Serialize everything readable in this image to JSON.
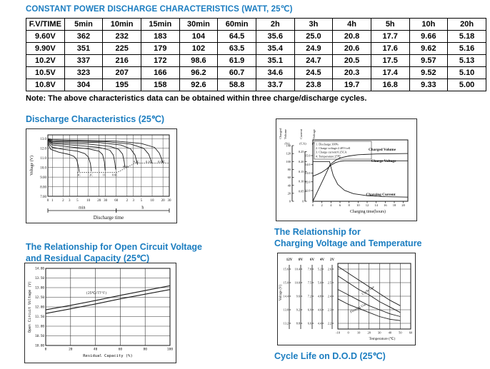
{
  "page_title": "CONSTANT POWER DISCHARGE CHARACTERISTICS (WATT, 25℃)",
  "accent_color": "#1b7dc0",
  "table": {
    "header": [
      "F.V/TIME",
      "5min",
      "10min",
      "15min",
      "30min",
      "60min",
      "2h",
      "3h",
      "4h",
      "5h",
      "10h",
      "20h"
    ],
    "rows": [
      [
        "9.60V",
        "362",
        "232",
        "183",
        "104",
        "64.5",
        "35.6",
        "25.0",
        "20.8",
        "17.7",
        "9.66",
        "5.18"
      ],
      [
        "9.90V",
        "351",
        "225",
        "179",
        "102",
        "63.5",
        "35.4",
        "24.9",
        "20.6",
        "17.6",
        "9.62",
        "5.16"
      ],
      [
        "10.2V",
        "337",
        "216",
        "172",
        "98.6",
        "61.9",
        "35.1",
        "24.7",
        "20.5",
        "17.5",
        "9.57",
        "5.13"
      ],
      [
        "10.5V",
        "323",
        "207",
        "166",
        "96.2",
        "60.7",
        "34.6",
        "24.5",
        "20.3",
        "17.4",
        "9.52",
        "5.10"
      ],
      [
        "10.8V",
        "304",
        "195",
        "158",
        "92.6",
        "58.8",
        "33.7",
        "23.8",
        "19.7",
        "16.8",
        "9.33",
        "5.00"
      ]
    ]
  },
  "note": "Note: The above characteristics data can be obtained within three charge/discharge cycles.",
  "sections": {
    "discharge_title": "Discharge Characteristics (25℃)",
    "charging_title_line1": "The Relationship for",
    "charging_title_line2": "Charging Voltage and Temperature",
    "ocv_title_line1": "The Relationship for Open Circuit Voltage",
    "ocv_title_line2": "and Residual Capacity (25℃)",
    "cycle_life_title": "Cycle Life on D.O.D (25℃)"
  },
  "chart_data": [
    {
      "id": "discharge",
      "type": "line",
      "title": "Discharge Characteristics (25℃)",
      "ylabel": "Voltage (V)",
      "xlabel": "Discharge time",
      "x_scale": "log",
      "xlim_minutes": [
        0.75,
        1800
      ],
      "ylim": [
        7.0,
        13.4
      ],
      "grid": true,
      "y_ticks": [
        {
          "label": "13.0",
          "v": 13.0
        },
        {
          "label": "12.0",
          "v": 12.0
        },
        {
          "label": "11.0",
          "v": 11.0
        },
        {
          "label": "10.0",
          "v": 10.0
        },
        {
          "label": "9.00",
          "v": 9.0
        },
        {
          "label": "8.00",
          "v": 8.0
        },
        {
          "label": "7.00",
          "v": 7.0
        }
      ],
      "x_ticks": [
        {
          "label": "0",
          "t": 0.75
        },
        {
          "label": "1",
          "t": 1
        },
        {
          "label": "2",
          "t": 2
        },
        {
          "label": "3",
          "t": 3
        },
        {
          "label": "5",
          "t": 5
        },
        {
          "label": "10",
          "t": 10
        },
        {
          "label": "20",
          "t": 20
        },
        {
          "label": "30",
          "t": 30
        },
        {
          "label": "60",
          "t": 60
        },
        {
          "label": "2",
          "t": 120
        },
        {
          "label": "3",
          "t": 180
        },
        {
          "label": "5",
          "t": 300
        },
        {
          "label": "10",
          "t": 600
        },
        {
          "label": "20",
          "t": 1200
        },
        {
          "label": "30",
          "t": 1800
        }
      ],
      "unit_segments": [
        {
          "label": "min",
          "from": 0.75,
          "to": 60
        },
        {
          "label": "h",
          "from": 60,
          "to": 1800
        }
      ],
      "series": [
        {
          "name": "3C",
          "points": [
            [
              0.75,
              12.5
            ],
            [
              0.9,
              11.9
            ],
            [
              1.5,
              11.6
            ],
            [
              3,
              11.35
            ],
            [
              4,
              11.15
            ],
            [
              4.8,
              10.8
            ],
            [
              5.3,
              10.1
            ],
            [
              5.6,
              9.55
            ]
          ]
        },
        {
          "name": "2C",
          "points": [
            [
              0.75,
              12.6
            ],
            [
              1,
              12.1
            ],
            [
              2,
              11.9
            ],
            [
              5,
              11.7
            ],
            [
              8,
              11.45
            ],
            [
              10,
              11.1
            ],
            [
              11.5,
              10.4
            ],
            [
              12.2,
              9.6
            ]
          ]
        },
        {
          "name": "1C",
          "points": [
            [
              0.75,
              12.7
            ],
            [
              1,
              12.35
            ],
            [
              3,
              12.15
            ],
            [
              10,
              11.95
            ],
            [
              20,
              11.7
            ],
            [
              25,
              11.35
            ],
            [
              28,
              10.6
            ],
            [
              29.5,
              9.7
            ]
          ]
        },
        {
          "name": "0.6C",
          "points": [
            [
              0.75,
              12.8
            ],
            [
              1,
              12.5
            ],
            [
              5,
              12.3
            ],
            [
              20,
              12.1
            ],
            [
              40,
              11.8
            ],
            [
              50,
              11.3
            ],
            [
              55,
              10.5
            ],
            [
              58,
              9.8
            ]
          ]
        },
        {
          "name": "0.3C",
          "points": [
            [
              0.75,
              12.85
            ],
            [
              1,
              12.6
            ],
            [
              10,
              12.45
            ],
            [
              40,
              12.2
            ],
            [
              70,
              11.9
            ],
            [
              90,
              11.4
            ],
            [
              100,
              10.6
            ],
            [
              105,
              10.0
            ]
          ]
        },
        {
          "name": "0.2C",
          "points": [
            [
              0.75,
              12.9
            ],
            [
              1,
              12.7
            ],
            [
              20,
              12.6
            ],
            [
              80,
              12.35
            ],
            [
              150,
              11.95
            ],
            [
              200,
              11.3
            ],
            [
              225,
              10.6
            ],
            [
              235,
              10.3
            ]
          ]
        },
        {
          "name": "0.1C",
          "points": [
            [
              0.75,
              12.95
            ],
            [
              1,
              12.8
            ],
            [
              30,
              12.7
            ],
            [
              150,
              12.45
            ],
            [
              350,
              12.0
            ],
            [
              480,
              11.4
            ],
            [
              550,
              10.8
            ],
            [
              580,
              10.45
            ]
          ]
        },
        {
          "name": "0.05C",
          "points": [
            [
              0.75,
              13.0
            ],
            [
              1,
              12.9
            ],
            [
              60,
              12.75
            ],
            [
              300,
              12.5
            ],
            [
              700,
              12.1
            ],
            [
              950,
              11.5
            ],
            [
              1100,
              10.9
            ],
            [
              1170,
              10.5
            ]
          ]
        }
      ],
      "cutoff_path": [
        [
          5,
          9.5
        ],
        [
          65,
          9.5
        ],
        [
          200,
          10.45
        ],
        [
          1800,
          10.45
        ]
      ],
      "series_labels": [
        {
          "text": "3C",
          "t": 5.5,
          "v": 9.25
        },
        {
          "text": "2C",
          "t": 12,
          "v": 9.25
        },
        {
          "text": "1C",
          "t": 28,
          "v": 9.25
        },
        {
          "text": "0.6C",
          "t": 55,
          "v": 9.25
        },
        {
          "text": "0.3C",
          "t": 110,
          "v": 10.1
        },
        {
          "text": "0.2C",
          "t": 220,
          "v": 10.6
        },
        {
          "text": "0.1C",
          "t": 480,
          "v": 10.6
        },
        {
          "text": "0.05C",
          "t": 1100,
          "v": 10.6
        }
      ]
    },
    {
      "id": "charge",
      "type": "line",
      "title": "Charge Characteristics",
      "xlabel": "Charging time(hours)",
      "xlim_hours": [
        0,
        21
      ],
      "x_ticks": [
        "0",
        "2",
        "4",
        "6",
        "8",
        "10",
        "12",
        "14",
        "16",
        "18",
        "20"
      ],
      "axes": [
        {
          "name": "Charged Volume",
          "unit": "(%)",
          "ticks": [
            "140",
            "120",
            "100",
            "80",
            "60",
            "40",
            "20",
            "0"
          ],
          "lim": [
            0,
            140
          ]
        },
        {
          "name": "Current",
          "unit": "(CA)",
          "ticks": [
            "0.25",
            "0.20",
            "0.15",
            "0.10",
            "0.05",
            "0"
          ],
          "lim": [
            0,
            0.28
          ]
        },
        {
          "name": "Voltage",
          "unit": "(V)",
          "ticks": [
            "15.0",
            "14.0",
            "13.0",
            "12.0",
            "11.0"
          ],
          "lim": [
            10.75,
            15.75
          ]
        }
      ],
      "legend": [
        "1. Discharge:100%",
        "2. Charge voltage:2.40V/cell",
        "3. Charge current:0.25CA",
        "4. Temperature:25℃"
      ],
      "series": [
        {
          "name": "Charged Volume",
          "axis": 0,
          "points": [
            [
              0,
              0
            ],
            [
              1,
              24
            ],
            [
              2,
              48
            ],
            [
              3,
              72
            ],
            [
              3.8,
              92
            ],
            [
              5,
              103
            ],
            [
              6,
              109
            ],
            [
              8,
              114
            ],
            [
              10,
              117
            ],
            [
              14,
              119
            ],
            [
              21,
              120
            ]
          ]
        },
        {
          "name": "Charge Voltage",
          "axis": 2,
          "points": [
            [
              0,
              12.65
            ],
            [
              1,
              12.85
            ],
            [
              2,
              13.1
            ],
            [
              3,
              13.45
            ],
            [
              4,
              13.9
            ],
            [
              5,
              14.2
            ],
            [
              6,
              14.35
            ],
            [
              7,
              14.4
            ],
            [
              21,
              14.4
            ]
          ]
        },
        {
          "name": "Charging Current",
          "axis": 1,
          "points": [
            [
              0,
              0.2
            ],
            [
              3.7,
              0.2
            ],
            [
              3.9,
              0.18
            ],
            [
              4.5,
              0.13
            ],
            [
              5.5,
              0.085
            ],
            [
              7,
              0.055
            ],
            [
              9,
              0.038
            ],
            [
              12,
              0.028
            ],
            [
              16,
              0.023
            ],
            [
              21,
              0.021
            ]
          ]
        }
      ],
      "curve_labels": [
        {
          "text": "Charged Volume",
          "x": 148,
          "y": 44
        },
        {
          "text": "Charge Voltage",
          "x": 150,
          "y": 60
        },
        {
          "text": "Charging Current",
          "x": 146,
          "y": 107
        }
      ]
    },
    {
      "id": "ocv",
      "type": "line",
      "title": "The Relationship for Open Circuit Voltage and Residual Capacity (25℃)",
      "ylabel": "Open Circuit Voltage (V)",
      "xlabel": "Residual Capacity (%)",
      "ylim": [
        10.0,
        14.0
      ],
      "xlim": [
        0,
        100
      ],
      "grid": true,
      "y_ticks": [
        "14.00",
        "13.50",
        "13.00",
        "12.50",
        "12.00",
        "11.50",
        "11.00",
        "10.50",
        "10.00"
      ],
      "x_ticks": [
        "0",
        "20",
        "40",
        "60",
        "80",
        "100"
      ],
      "annotation": "(25℃/77°F)",
      "series": [
        {
          "name": "upper",
          "points": [
            [
              0,
              11.85
            ],
            [
              20,
              12.08
            ],
            [
              40,
              12.33
            ],
            [
              60,
              12.6
            ],
            [
              80,
              12.85
            ],
            [
              100,
              13.1
            ]
          ]
        },
        {
          "name": "lower",
          "points": [
            [
              0,
              11.66
            ],
            [
              20,
              11.9
            ],
            [
              40,
              12.15
            ],
            [
              60,
              12.42
            ],
            [
              80,
              12.66
            ],
            [
              100,
              12.9
            ]
          ]
        }
      ]
    },
    {
      "id": "charging_voltage_temperature",
      "type": "line",
      "title": "The Relationship for Charging Voltage and Temperature",
      "ylabel": "Voltage (V)",
      "xlabel": "Temperature (℃)",
      "xlim": [
        -10,
        60
      ],
      "ylim_2v": [
        2.15,
        2.65
      ],
      "grid": true,
      "scales": [
        {
          "header": "12V",
          "ticks": [
            "15.6",
            "15.0",
            "14.4",
            "13.8",
            "13.2"
          ]
        },
        {
          "header": "8V",
          "ticks": [
            "10.4",
            "10.0",
            "9.6",
            "9.2",
            "8.8"
          ]
        },
        {
          "header": "6V",
          "ticks": [
            "7.8",
            "7.5",
            "7.2",
            "6.9",
            "6.6"
          ]
        },
        {
          "header": "4V",
          "ticks": [
            "5.2",
            "5.0",
            "4.8",
            "4.6",
            "4.4"
          ]
        },
        {
          "header": "2V",
          "ticks": [
            "2.6",
            "2.5",
            "2.4",
            "2.3",
            "2.2"
          ]
        }
      ],
      "x_ticks": [
        "-10",
        "0",
        "10",
        "20",
        "30",
        "40",
        "50",
        "60"
      ],
      "bands": [
        {
          "name": "Cycle Use",
          "upper": [
            [
              -10,
              2.62
            ],
            [
              0,
              2.57
            ],
            [
              10,
              2.52
            ],
            [
              20,
              2.47
            ],
            [
              30,
              2.42
            ],
            [
              40,
              2.37
            ],
            [
              50,
              2.33
            ]
          ],
          "lower": [
            [
              -10,
              2.55
            ],
            [
              0,
              2.5
            ],
            [
              10,
              2.45
            ],
            [
              20,
              2.41
            ],
            [
              30,
              2.36
            ],
            [
              40,
              2.32
            ],
            [
              50,
              2.28
            ]
          ]
        },
        {
          "name": "Floating Use",
          "upper": [
            [
              -10,
              2.45
            ],
            [
              0,
              2.41
            ],
            [
              10,
              2.37
            ],
            [
              20,
              2.33
            ],
            [
              30,
              2.3
            ],
            [
              40,
              2.27
            ],
            [
              50,
              2.25
            ]
          ],
          "lower": [
            [
              -10,
              2.38
            ],
            [
              0,
              2.34
            ],
            [
              10,
              2.31
            ],
            [
              20,
              2.28
            ],
            [
              30,
              2.25
            ],
            [
              40,
              2.23
            ],
            [
              50,
              2.22
            ]
          ]
        }
      ]
    }
  ]
}
